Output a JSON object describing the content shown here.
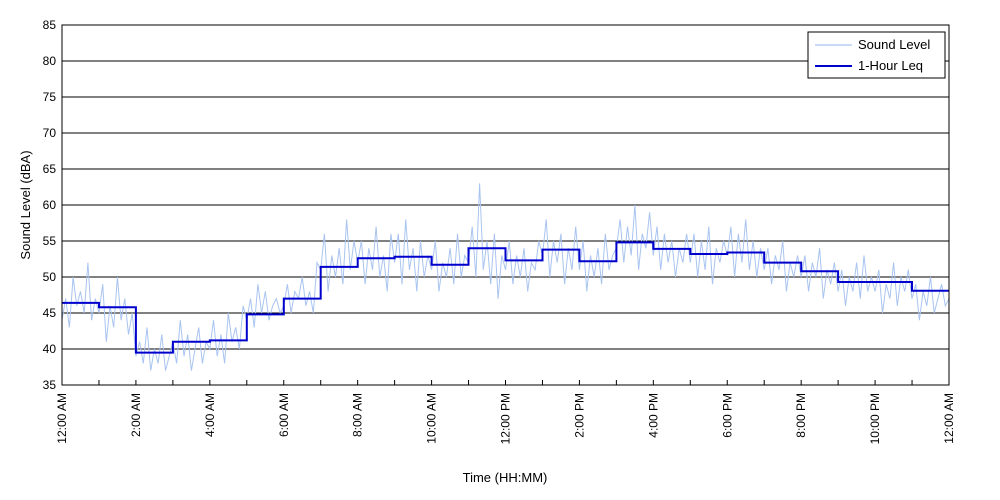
{
  "chart_data": {
    "type": "line",
    "title": "",
    "xlabel": "Time (HH:MM)",
    "ylabel": "Sound Level (dBA)",
    "ylim": [
      35,
      85
    ],
    "xlim": [
      0,
      24
    ],
    "y_ticks": [
      35,
      40,
      45,
      50,
      55,
      60,
      65,
      70,
      75,
      80,
      85
    ],
    "x_ticks": [
      0,
      2,
      4,
      6,
      8,
      10,
      12,
      14,
      16,
      18,
      20,
      22,
      24
    ],
    "x_tick_labels": [
      "12:00 AM",
      "2:00 AM",
      "4:00 AM",
      "6:00 AM",
      "8:00 AM",
      "10:00 AM",
      "12:00 PM",
      "2:00 PM",
      "4:00 PM",
      "6:00 PM",
      "8:00 PM",
      "10:00 PM",
      "12:00 AM"
    ],
    "grid": "horizontal",
    "legend_position": "top-right",
    "series": [
      {
        "name": "Sound Level",
        "color": "#a9c4f0",
        "style": "thin-line",
        "x": [
          0.0,
          0.1,
          0.2,
          0.3,
          0.4,
          0.5,
          0.6,
          0.7,
          0.8,
          0.9,
          1.0,
          1.1,
          1.2,
          1.3,
          1.4,
          1.5,
          1.6,
          1.7,
          1.8,
          1.9,
          2.0,
          2.1,
          2.2,
          2.3,
          2.4,
          2.5,
          2.6,
          2.7,
          2.8,
          2.9,
          3.0,
          3.1,
          3.2,
          3.3,
          3.4,
          3.5,
          3.6,
          3.7,
          3.8,
          3.9,
          4.0,
          4.1,
          4.2,
          4.3,
          4.4,
          4.5,
          4.6,
          4.7,
          4.8,
          4.9,
          5.0,
          5.1,
          5.2,
          5.3,
          5.4,
          5.5,
          5.6,
          5.7,
          5.8,
          5.9,
          6.0,
          6.1,
          6.2,
          6.3,
          6.4,
          6.5,
          6.6,
          6.7,
          6.8,
          6.9,
          7.0,
          7.1,
          7.2,
          7.3,
          7.4,
          7.5,
          7.6,
          7.7,
          7.8,
          7.9,
          8.0,
          8.1,
          8.2,
          8.3,
          8.4,
          8.5,
          8.6,
          8.7,
          8.8,
          8.9,
          9.0,
          9.1,
          9.2,
          9.3,
          9.4,
          9.5,
          9.6,
          9.7,
          9.8,
          9.9,
          10.0,
          10.1,
          10.2,
          10.3,
          10.4,
          10.5,
          10.6,
          10.7,
          10.8,
          10.9,
          11.0,
          11.1,
          11.2,
          11.3,
          11.4,
          11.5,
          11.6,
          11.7,
          11.8,
          11.9,
          12.0,
          12.1,
          12.2,
          12.3,
          12.4,
          12.5,
          12.6,
          12.7,
          12.8,
          12.9,
          13.0,
          13.1,
          13.2,
          13.3,
          13.4,
          13.5,
          13.6,
          13.7,
          13.8,
          13.9,
          14.0,
          14.1,
          14.2,
          14.3,
          14.4,
          14.5,
          14.6,
          14.7,
          14.8,
          14.9,
          15.0,
          15.1,
          15.2,
          15.3,
          15.4,
          15.5,
          15.6,
          15.7,
          15.8,
          15.9,
          16.0,
          16.1,
          16.2,
          16.3,
          16.4,
          16.5,
          16.6,
          16.7,
          16.8,
          16.9,
          17.0,
          17.1,
          17.2,
          17.3,
          17.4,
          17.5,
          17.6,
          17.7,
          17.8,
          17.9,
          18.0,
          18.1,
          18.2,
          18.3,
          18.4,
          18.5,
          18.6,
          18.7,
          18.8,
          18.9,
          19.0,
          19.1,
          19.2,
          19.3,
          19.4,
          19.5,
          19.6,
          19.7,
          19.8,
          19.9,
          20.0,
          20.1,
          20.2,
          20.3,
          20.4,
          20.5,
          20.6,
          20.7,
          20.8,
          20.9,
          21.0,
          21.1,
          21.2,
          21.3,
          21.4,
          21.5,
          21.6,
          21.7,
          21.8,
          21.9,
          22.0,
          22.1,
          22.2,
          22.3,
          22.4,
          22.5,
          22.6,
          22.7,
          22.8,
          22.9,
          23.0,
          23.1,
          23.2,
          23.3,
          23.4,
          23.5,
          23.6,
          23.7,
          23.8,
          23.9,
          24.0
        ],
        "values": [
          44,
          47,
          43,
          50,
          46,
          48,
          45,
          52,
          44,
          47,
          45,
          49,
          41,
          46,
          43,
          50,
          44,
          47,
          42,
          45,
          39,
          41,
          38,
          43,
          37,
          40,
          38,
          42,
          37,
          39,
          41,
          38,
          44,
          39,
          42,
          37,
          40,
          43,
          38,
          41,
          40,
          44,
          39,
          42,
          38,
          45,
          41,
          43,
          40,
          46,
          44,
          47,
          43,
          49,
          45,
          48,
          44,
          46,
          47,
          45,
          46,
          49,
          45,
          48,
          47,
          50,
          46,
          48,
          45,
          52,
          51,
          56,
          48,
          53,
          50,
          54,
          49,
          58,
          51,
          55,
          52,
          55,
          49,
          54,
          51,
          57,
          50,
          53,
          48,
          56,
          52,
          56,
          49,
          58,
          51,
          54,
          48,
          55,
          50,
          53,
          51,
          55,
          48,
          52,
          50,
          54,
          49,
          56,
          50,
          53,
          52,
          57,
          50,
          63,
          51,
          55,
          49,
          56,
          47,
          53,
          51,
          55,
          49,
          53,
          50,
          54,
          48,
          52,
          51,
          55,
          53,
          58,
          50,
          55,
          52,
          56,
          49,
          54,
          51,
          57,
          51,
          55,
          48,
          53,
          50,
          54,
          49,
          56,
          51,
          53,
          54,
          58,
          52,
          57,
          53,
          60,
          51,
          56,
          54,
          59,
          53,
          57,
          51,
          56,
          52,
          55,
          50,
          54,
          52,
          56,
          52,
          56,
          50,
          55,
          51,
          57,
          49,
          54,
          52,
          55,
          53,
          57,
          50,
          56,
          52,
          58,
          51,
          55,
          50,
          54,
          51,
          54,
          49,
          53,
          51,
          55,
          48,
          52,
          50,
          53,
          50,
          53,
          48,
          52,
          50,
          54,
          47,
          51,
          49,
          52,
          48,
          51,
          46,
          50,
          48,
          52,
          47,
          53,
          48,
          50,
          48,
          51,
          45,
          49,
          47,
          52,
          46,
          50,
          48,
          51,
          47,
          49,
          44,
          48,
          46,
          50,
          45,
          47,
          49,
          46,
          47
        ]
      },
      {
        "name": "1-Hour Leq",
        "color": "#0000cc",
        "style": "step",
        "hours": [
          0,
          1,
          2,
          3,
          4,
          5,
          6,
          7,
          8,
          9,
          10,
          11,
          12,
          13,
          14,
          15,
          16,
          17,
          18,
          19,
          20,
          21,
          22,
          23
        ],
        "values": [
          46.4,
          45.8,
          39.5,
          41.0,
          41.2,
          44.8,
          47.0,
          51.4,
          52.6,
          52.8,
          51.7,
          54.0,
          52.3,
          53.8,
          52.2,
          54.8,
          53.9,
          53.2,
          53.4,
          52.0,
          50.8,
          49.3,
          49.3,
          48.1
        ]
      }
    ]
  }
}
